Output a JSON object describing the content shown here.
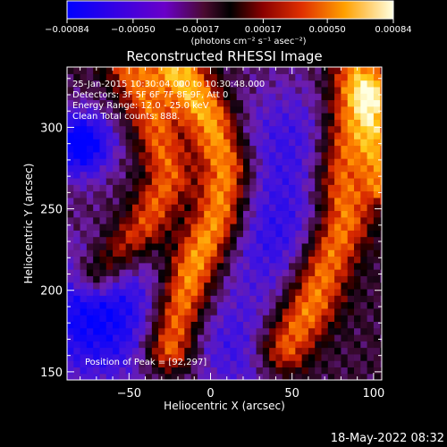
{
  "colorbar": {
    "ticks": [
      "-0.00084",
      "-0.00050",
      "-0.00017",
      "0.00017",
      "0.00050",
      "0.00084"
    ],
    "unit_label": "(photons cm⁻² s⁻¹ asec⁻²)",
    "range": [
      -0.00084,
      0.00084
    ]
  },
  "annotations": {
    "time_range": "25-Jan-2015 10:30:04.000 to 10:30:48.000",
    "detectors": "Detectors: 3F 5F 6F 7F 8F 9F, Att 0",
    "energy": "Energy Range: 12.0 - 25.0 keV",
    "clean": "Clean    Total counts: 888.",
    "peak": "Position of Peak = [92,297]"
  },
  "footer": {
    "timestamp": "18-May-2022 08:32"
  },
  "chart_data": {
    "type": "heatmap",
    "title": "Reconstructed RHESSI Image",
    "xlabel": "Heliocentric X (arcsec)",
    "ylabel": "Heliocentric Y (arcsec)",
    "xlim": [
      -88,
      105
    ],
    "ylim": [
      145,
      337
    ],
    "xticks": [
      -50,
      0,
      50,
      100
    ],
    "yticks": [
      150,
      200,
      250,
      300
    ],
    "xtick_labels": [
      "−50",
      "0",
      "50",
      "100"
    ],
    "ytick_labels": [
      "150",
      "200",
      "250",
      "300"
    ],
    "colormap": [
      "#0000ff",
      "#4400cc",
      "#7a1fa8",
      "#2a0a1a",
      "#000000",
      "#5a0000",
      "#c01800",
      "#ff6a00",
      "#ffc000",
      "#ffffc0"
    ],
    "peak": [
      92,
      297
    ],
    "bands": [
      {
        "name": "left",
        "points": [
          [
            -50,
            338
          ],
          [
            -35,
            305
          ],
          [
            -25,
            270
          ],
          [
            -40,
            240
          ],
          [
            -70,
            210
          ]
        ],
        "width": 10,
        "amplitude": 0.00055
      },
      {
        "name": "middle",
        "points": [
          [
            -20,
            335
          ],
          [
            0,
            305
          ],
          [
            10,
            275
          ],
          [
            5,
            245
          ],
          [
            -10,
            215
          ],
          [
            -20,
            185
          ],
          [
            -25,
            165
          ]
        ],
        "width": 11,
        "amplitude": 0.0008
      },
      {
        "name": "right",
        "points": [
          [
            90,
            330
          ],
          [
            85,
            300
          ],
          [
            80,
            270
          ],
          [
            82,
            245
          ],
          [
            70,
            215
          ],
          [
            60,
            190
          ],
          [
            45,
            165
          ]
        ],
        "width": 12,
        "amplitude": 0.00075
      },
      {
        "name": "far-right",
        "points": [
          [
            100,
            320
          ],
          [
            102,
            290
          ],
          [
            105,
            265
          ]
        ],
        "width": 8,
        "amplitude": 0.0006
      }
    ],
    "negative_regions": [
      {
        "center": [
          -70,
          185
        ],
        "radius": 30,
        "amplitude": -0.0007
      },
      {
        "center": [
          -80,
          290
        ],
        "radius": 15,
        "amplitude": -0.0008
      },
      {
        "center": [
          50,
          290
        ],
        "radius": 30,
        "amplitude": -0.0004
      },
      {
        "center": [
          40,
          230
        ],
        "radius": 25,
        "amplitude": -0.0004
      },
      {
        "center": [
          20,
          165
        ],
        "radius": 25,
        "amplitude": -0.0004
      }
    ]
  }
}
